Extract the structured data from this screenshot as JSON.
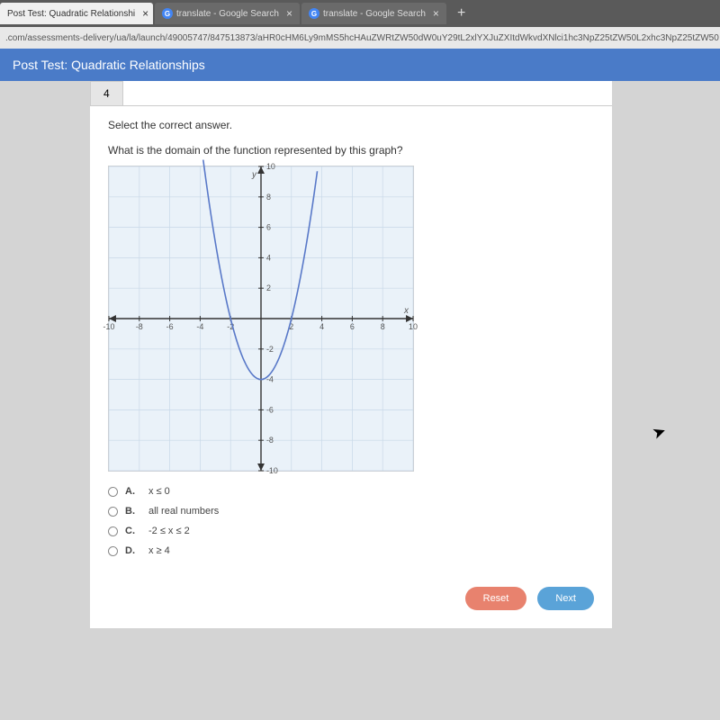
{
  "tabs": [
    {
      "label": "Post Test: Quadratic Relationshi",
      "icon": ""
    },
    {
      "label": "translate - Google Search",
      "icon": "G"
    },
    {
      "label": "translate - Google Search",
      "icon": "G"
    }
  ],
  "url": ".com/assessments-delivery/ua/la/launch/49005747/847513873/aHR0cHM6Ly9mMS5hcHAuZWRtZW50dW0uY29tL2xlYXJuZXItdWkvdXNlci1hc3NpZ25tZW50L2xhc3NpZ25tZW50",
  "page_title": "Post Test: Quadratic Relationships",
  "question_number": "4",
  "instruction": "Select the correct answer.",
  "question_text": "What is the domain of the function represented by this graph?",
  "graph": {
    "type": "scatter-line",
    "xlim": [
      -10,
      10
    ],
    "ylim": [
      -10,
      10
    ],
    "tick_step": 2,
    "xticks": [
      -10,
      -8,
      -6,
      -4,
      -2,
      2,
      4,
      6,
      8,
      10
    ],
    "yticks": [
      -10,
      -8,
      -6,
      -4,
      -2,
      2,
      4,
      6,
      8,
      10
    ],
    "axis_color": "#333333",
    "grid_color": "#c8d8e8",
    "background_color": "#eaf2f9",
    "curve_color": "#5878c8",
    "curve_width": 1.6,
    "label_fontsize": 9,
    "label_color": "#555555",
    "y_label": "y",
    "x_label": "x",
    "parabola": {
      "a": 1,
      "h": 0,
      "k": -4,
      "xmin": -3.8,
      "xmax": 3.8
    }
  },
  "choices": [
    {
      "letter": "A.",
      "text": "x ≤ 0"
    },
    {
      "letter": "B.",
      "text": "all real numbers"
    },
    {
      "letter": "C.",
      "text": "-2 ≤ x ≤ 2"
    },
    {
      "letter": "D.",
      "text": "x ≥ 4"
    }
  ],
  "buttons": {
    "reset": "Reset",
    "next": "Next"
  },
  "colors": {
    "header_bg": "#4a7bc8",
    "reset_bg": "#e8826e",
    "next_bg": "#5aa3d8"
  }
}
